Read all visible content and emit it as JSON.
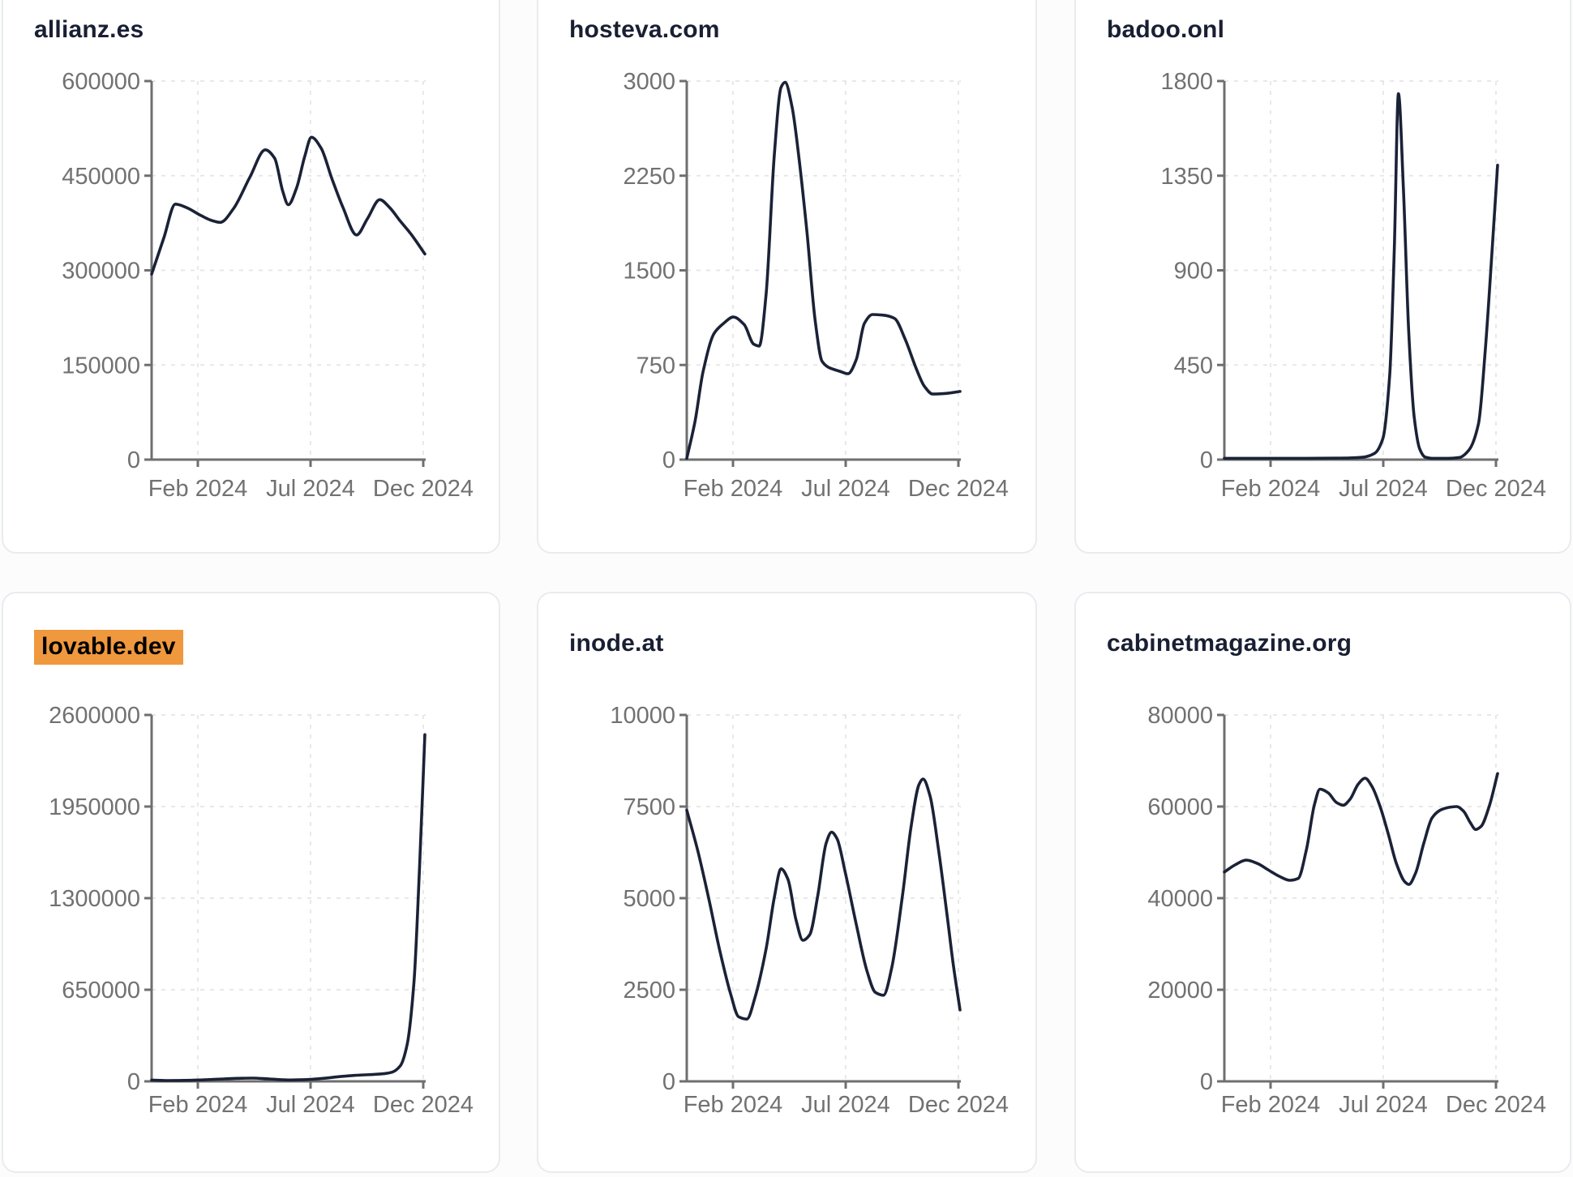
{
  "style": {
    "page_bg": "#fcfcfd",
    "card_bg": "#ffffff",
    "card_border": "#e9ebef",
    "title_color": "#191f33",
    "line_color": "#1b2237",
    "axis_color": "#6f6f6f",
    "label_color": "#717171",
    "grid_color": "#e5e5e5",
    "highlight": "#ef983e"
  },
  "chart_data": [
    {
      "type": "line",
      "title": "allianz.es",
      "highlighted": false,
      "x_axis": {
        "tick_labels": [
          "Feb 2024",
          "Jul 2024",
          "Dec 2024"
        ]
      },
      "y_axis": {
        "ticks": [
          0,
          150000,
          300000,
          450000,
          600000
        ],
        "max": 600000
      },
      "grid": "dashed",
      "points": [
        [
          0.0,
          294000
        ],
        [
          0.045,
          352000
        ],
        [
          0.087,
          405000
        ],
        [
          0.13,
          399000
        ],
        [
          0.18,
          387000
        ],
        [
          0.22,
          379000
        ],
        [
          0.251,
          376000
        ],
        [
          0.3,
          398000
        ],
        [
          0.36,
          448000
        ],
        [
          0.416,
          491000
        ],
        [
          0.45,
          478000
        ],
        [
          0.48,
          425000
        ],
        [
          0.5,
          404000
        ],
        [
          0.53,
          430000
        ],
        [
          0.56,
          480000
        ],
        [
          0.585,
          511000
        ],
        [
          0.62,
          494000
        ],
        [
          0.66,
          445000
        ],
        [
          0.7,
          400000
        ],
        [
          0.75,
          356000
        ],
        [
          0.79,
          382000
        ],
        [
          0.835,
          412000
        ],
        [
          0.87,
          400000
        ],
        [
          0.91,
          378000
        ],
        [
          0.95,
          357000
        ],
        [
          1.0,
          326000
        ]
      ]
    },
    {
      "type": "line",
      "title": "hosteva.com",
      "highlighted": false,
      "x_axis": {
        "tick_labels": [
          "Feb 2024",
          "Jul 2024",
          "Dec 2024"
        ]
      },
      "y_axis": {
        "ticks": [
          0,
          750,
          1500,
          2250,
          3000
        ],
        "max": 3000
      },
      "grid": "dashed",
      "points": [
        [
          0.0,
          10
        ],
        [
          0.03,
          300
        ],
        [
          0.06,
          700
        ],
        [
          0.1,
          1000
        ],
        [
          0.135,
          1080
        ],
        [
          0.17,
          1130
        ],
        [
          0.21,
          1070
        ],
        [
          0.245,
          915
        ],
        [
          0.265,
          900
        ],
        [
          0.29,
          1300
        ],
        [
          0.32,
          2400
        ],
        [
          0.345,
          2950
        ],
        [
          0.36,
          2990
        ],
        [
          0.385,
          2800
        ],
        [
          0.41,
          2400
        ],
        [
          0.44,
          1800
        ],
        [
          0.47,
          1100
        ],
        [
          0.495,
          780
        ],
        [
          0.52,
          730
        ],
        [
          0.56,
          700
        ],
        [
          0.59,
          680
        ],
        [
          0.62,
          790
        ],
        [
          0.65,
          1080
        ],
        [
          0.68,
          1150
        ],
        [
          0.72,
          1145
        ],
        [
          0.76,
          1120
        ],
        [
          0.8,
          950
        ],
        [
          0.84,
          720
        ],
        [
          0.87,
          580
        ],
        [
          0.9,
          520
        ],
        [
          0.95,
          525
        ],
        [
          1.0,
          540
        ]
      ]
    },
    {
      "type": "line",
      "title": "badoo.onl",
      "highlighted": false,
      "x_axis": {
        "tick_labels": [
          "Feb 2024",
          "Jul 2024",
          "Dec 2024"
        ]
      },
      "y_axis": {
        "ticks": [
          0,
          450,
          900,
          1350,
          1800
        ],
        "max": 1800
      },
      "grid": "dashed",
      "points": [
        [
          0.0,
          6
        ],
        [
          0.1,
          6
        ],
        [
          0.2,
          6
        ],
        [
          0.3,
          6
        ],
        [
          0.4,
          7
        ],
        [
          0.46,
          8
        ],
        [
          0.51,
          12
        ],
        [
          0.55,
          30
        ],
        [
          0.58,
          100
        ],
        [
          0.605,
          400
        ],
        [
          0.622,
          1000
        ],
        [
          0.637,
          1740
        ],
        [
          0.655,
          1300
        ],
        [
          0.675,
          600
        ],
        [
          0.695,
          200
        ],
        [
          0.715,
          50
        ],
        [
          0.735,
          12
        ],
        [
          0.76,
          6
        ],
        [
          0.82,
          6
        ],
        [
          0.86,
          10
        ],
        [
          0.895,
          45
        ],
        [
          0.93,
          170
        ],
        [
          0.955,
          520
        ],
        [
          0.98,
          1000
        ],
        [
          1.0,
          1400
        ]
      ]
    },
    {
      "type": "line",
      "title": "lovable.dev",
      "highlighted": true,
      "x_axis": {
        "tick_labels": [
          "Feb 2024",
          "Jul 2024",
          "Dec 2024"
        ]
      },
      "y_axis": {
        "ticks": [
          0,
          650000,
          1300000,
          1950000,
          2600000
        ],
        "max": 2600000
      },
      "grid": "dashed",
      "points": [
        [
          0.0,
          9000
        ],
        [
          0.06,
          6000
        ],
        [
          0.12,
          7000
        ],
        [
          0.18,
          10000
        ],
        [
          0.25,
          16000
        ],
        [
          0.31,
          21000
        ],
        [
          0.37,
          23000
        ],
        [
          0.43,
          17000
        ],
        [
          0.5,
          10000
        ],
        [
          0.56,
          12000
        ],
        [
          0.62,
          20000
        ],
        [
          0.68,
          32000
        ],
        [
          0.74,
          42000
        ],
        [
          0.8,
          48000
        ],
        [
          0.85,
          54000
        ],
        [
          0.88,
          65000
        ],
        [
          0.91,
          110000
        ],
        [
          0.935,
          260000
        ],
        [
          0.96,
          700000
        ],
        [
          0.98,
          1500000
        ],
        [
          1.0,
          2460000
        ]
      ]
    },
    {
      "type": "line",
      "title": "inode.at",
      "highlighted": false,
      "x_axis": {
        "tick_labels": [
          "Feb 2024",
          "Jul 2024",
          "Dec 2024"
        ]
      },
      "y_axis": {
        "ticks": [
          0,
          2500,
          5000,
          7500,
          10000
        ],
        "max": 10000
      },
      "grid": "dashed",
      "points": [
        [
          0.0,
          7400
        ],
        [
          0.04,
          6300
        ],
        [
          0.08,
          5000
        ],
        [
          0.12,
          3600
        ],
        [
          0.16,
          2400
        ],
        [
          0.19,
          1760
        ],
        [
          0.22,
          1700
        ],
        [
          0.25,
          2300
        ],
        [
          0.29,
          3600
        ],
        [
          0.32,
          5000
        ],
        [
          0.345,
          5800
        ],
        [
          0.37,
          5520
        ],
        [
          0.4,
          4400
        ],
        [
          0.425,
          3850
        ],
        [
          0.45,
          4000
        ],
        [
          0.48,
          5100
        ],
        [
          0.51,
          6500
        ],
        [
          0.53,
          6800
        ],
        [
          0.55,
          6620
        ],
        [
          0.58,
          5700
        ],
        [
          0.62,
          4300
        ],
        [
          0.66,
          3000
        ],
        [
          0.69,
          2430
        ],
        [
          0.72,
          2350
        ],
        [
          0.75,
          3100
        ],
        [
          0.79,
          5100
        ],
        [
          0.82,
          6900
        ],
        [
          0.85,
          8100
        ],
        [
          0.865,
          8250
        ],
        [
          0.89,
          7800
        ],
        [
          0.92,
          6400
        ],
        [
          0.95,
          4700
        ],
        [
          0.975,
          3200
        ],
        [
          1.0,
          1950
        ]
      ]
    },
    {
      "type": "line",
      "title": "cabinetmagazine.org",
      "highlighted": false,
      "x_axis": {
        "tick_labels": [
          "Feb 2024",
          "Jul 2024",
          "Dec 2024"
        ]
      },
      "y_axis": {
        "ticks": [
          0,
          20000,
          40000,
          60000,
          80000
        ],
        "max": 80000
      },
      "grid": "dashed",
      "points": [
        [
          0.0,
          45700
        ],
        [
          0.04,
          47300
        ],
        [
          0.08,
          48300
        ],
        [
          0.12,
          47600
        ],
        [
          0.16,
          46200
        ],
        [
          0.2,
          44800
        ],
        [
          0.24,
          43900
        ],
        [
          0.27,
          44300
        ],
        [
          0.3,
          50500
        ],
        [
          0.33,
          60500
        ],
        [
          0.35,
          63800
        ],
        [
          0.38,
          63000
        ],
        [
          0.41,
          60900
        ],
        [
          0.435,
          60300
        ],
        [
          0.46,
          61600
        ],
        [
          0.49,
          64900
        ],
        [
          0.515,
          66200
        ],
        [
          0.54,
          64400
        ],
        [
          0.57,
          60000
        ],
        [
          0.6,
          54000
        ],
        [
          0.63,
          47500
        ],
        [
          0.66,
          43600
        ],
        [
          0.675,
          43000
        ],
        [
          0.7,
          45500
        ],
        [
          0.73,
          52000
        ],
        [
          0.76,
          57500
        ],
        [
          0.79,
          59200
        ],
        [
          0.82,
          59800
        ],
        [
          0.85,
          60000
        ],
        [
          0.875,
          59000
        ],
        [
          0.9,
          56500
        ],
        [
          0.92,
          55000
        ],
        [
          0.94,
          55700
        ],
        [
          0.97,
          60200
        ],
        [
          1.0,
          67200
        ]
      ]
    }
  ]
}
